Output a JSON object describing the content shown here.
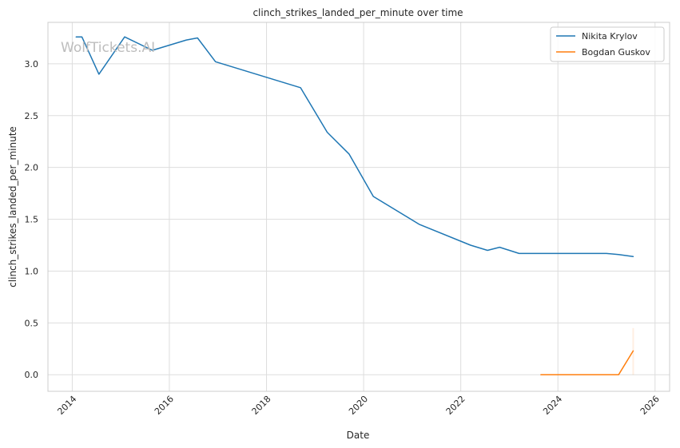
{
  "chart_data": {
    "type": "line",
    "title": "clinch_strikes_landed_per_minute over time",
    "xlabel": "Date",
    "ylabel": "clinch_strikes_landed_per_minute",
    "x_ticks": [
      "2014",
      "2016",
      "2018",
      "2020",
      "2022",
      "2024",
      "2026"
    ],
    "y_ticks": [
      "0.0",
      "0.5",
      "1.0",
      "1.5",
      "2.0",
      "2.5",
      "3.0"
    ],
    "xlim": [
      2013.5,
      2026.3
    ],
    "ylim": [
      -0.16,
      3.4
    ],
    "grid": true,
    "legend_position": "top-right",
    "watermark": "WolfTickets.AI",
    "colors": {
      "Nikita Krylov": "#1f77b4",
      "Bogdan Guskov": "#ff7f0e"
    },
    "series": [
      {
        "name": "Nikita Krylov",
        "x": [
          2014.08,
          2014.2,
          2014.55,
          2015.08,
          2015.65,
          2016.35,
          2016.58,
          2016.95,
          2018.0,
          2018.7,
          2019.25,
          2019.7,
          2020.2,
          2021.15,
          2022.2,
          2022.55,
          2022.8,
          2023.2,
          2024.0,
          2025.0,
          2025.25,
          2025.55
        ],
        "y": [
          3.26,
          3.26,
          2.9,
          3.26,
          3.13,
          3.23,
          3.25,
          3.02,
          2.87,
          2.77,
          2.34,
          2.13,
          1.72,
          1.45,
          1.25,
          1.2,
          1.23,
          1.17,
          1.17,
          1.17,
          1.16,
          1.14
        ]
      },
      {
        "name": "Bogdan Guskov",
        "x": [
          2023.65,
          2024.0,
          2025.0,
          2025.25,
          2025.55
        ],
        "y": [
          0.0,
          0.0,
          0.0,
          0.0,
          0.23
        ]
      }
    ]
  }
}
